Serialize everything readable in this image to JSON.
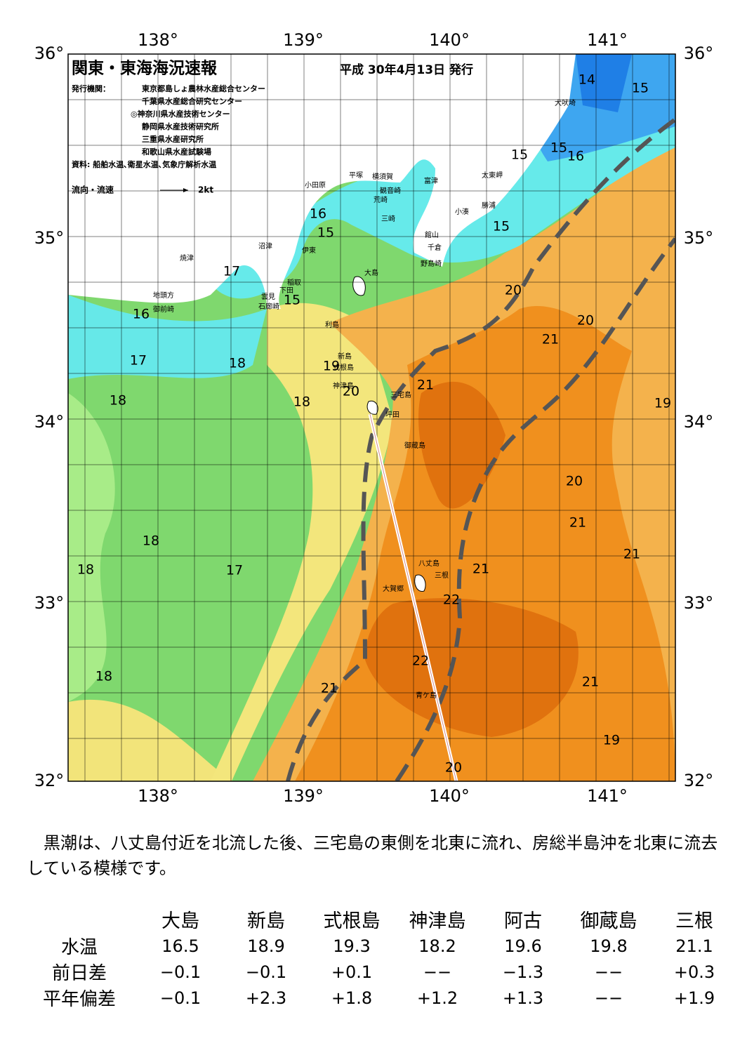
{
  "header": {
    "title": "関東・東海海況速報",
    "date": "平成 30年4月13日 発行",
    "issuer_label": "発行機関：",
    "issuers": [
      "東京都島しょ農林水産総合センター",
      "千葉県水産総合研究センター",
      "◎神奈川県水産技術センター",
      "静岡県水産技術研究所",
      "三重県水産研究所",
      "和歌山県水産試験場"
    ],
    "source": "資料: 船舶水温､衛星水温､気象庁解析水温",
    "legend": "流向・流速",
    "legend_unit": "2kt"
  },
  "map": {
    "lon_labels": [
      "138°",
      "139°",
      "140°",
      "141°"
    ],
    "lat_labels": [
      "36°",
      "35°",
      "34°",
      "33°",
      "32°"
    ],
    "places": [
      "犬吠埼",
      "太東岬",
      "勝浦",
      "小湊",
      "富津",
      "横須賀",
      "観音崎",
      "荒崎",
      "平塚",
      "小田原",
      "三崎",
      "館山",
      "千倉",
      "野島崎",
      "沼津",
      "伊東",
      "焼津",
      "大島",
      "稲取",
      "下田",
      "雲見",
      "石廊崎",
      "地頭方",
      "御前崎",
      "利島",
      "新島",
      "式根島",
      "神津島",
      "三宅島",
      "坪田",
      "御蔵島",
      "八丈島",
      "三根",
      "大賀郷",
      "青ケ島"
    ],
    "isotherm_labels": [
      "14",
      "15",
      "15",
      "15",
      "16",
      "15",
      "16",
      "15",
      "17",
      "15",
      "16",
      "17",
      "18",
      "18",
      "18",
      "20",
      "20",
      "21",
      "21",
      "20",
      "19",
      "19",
      "20",
      "21",
      "21",
      "21",
      "22",
      "22",
      "21",
      "21",
      "19",
      "20",
      "18",
      "18",
      "17",
      "18"
    ]
  },
  "description": "黒潮は、八丈島付近を北流した後、三宅島の東側を北東に流れ、房総半島沖を北東に流去している模様です。",
  "table": {
    "columns": [
      "大島",
      "新島",
      "式根島",
      "神津島",
      "阿古",
      "御蔵島",
      "三根"
    ],
    "rows": [
      {
        "label": "水温",
        "values": [
          "16.5",
          "18.9",
          "19.3",
          "18.2",
          "19.6",
          "19.8",
          "21.1"
        ]
      },
      {
        "label": "前日差",
        "values": [
          "−0.1",
          "−0.1",
          "+0.1",
          "−−",
          "−1.3",
          "−−",
          "+0.3"
        ]
      },
      {
        "label": "平年偏差",
        "values": [
          "−0.1",
          "+2.3",
          "+1.8",
          "+1.2",
          "+1.3",
          "−−",
          "+1.9"
        ]
      }
    ]
  }
}
